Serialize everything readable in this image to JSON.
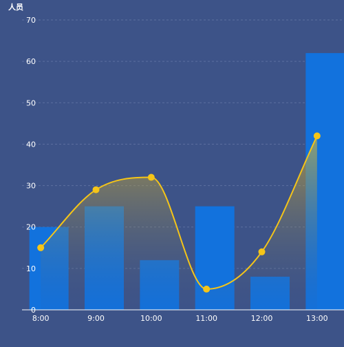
{
  "chart_data": {
    "type": "bar",
    "ylabel": "人员",
    "categories": [
      "8:00",
      "9:00",
      "10:00",
      "11:00",
      "12:00",
      "13:00"
    ],
    "ylim": [
      0,
      70
    ],
    "yticks": [
      0,
      10,
      20,
      30,
      40,
      50,
      60,
      70
    ],
    "grid": true,
    "series": [
      {
        "type": "bar",
        "values": [
          20,
          25,
          12,
          25,
          8,
          62
        ],
        "color": "#1272dd"
      },
      {
        "type": "line",
        "smooth": true,
        "area": true,
        "values": [
          15,
          29,
          32,
          5,
          14,
          42
        ],
        "color": "#f5c518"
      }
    ]
  }
}
